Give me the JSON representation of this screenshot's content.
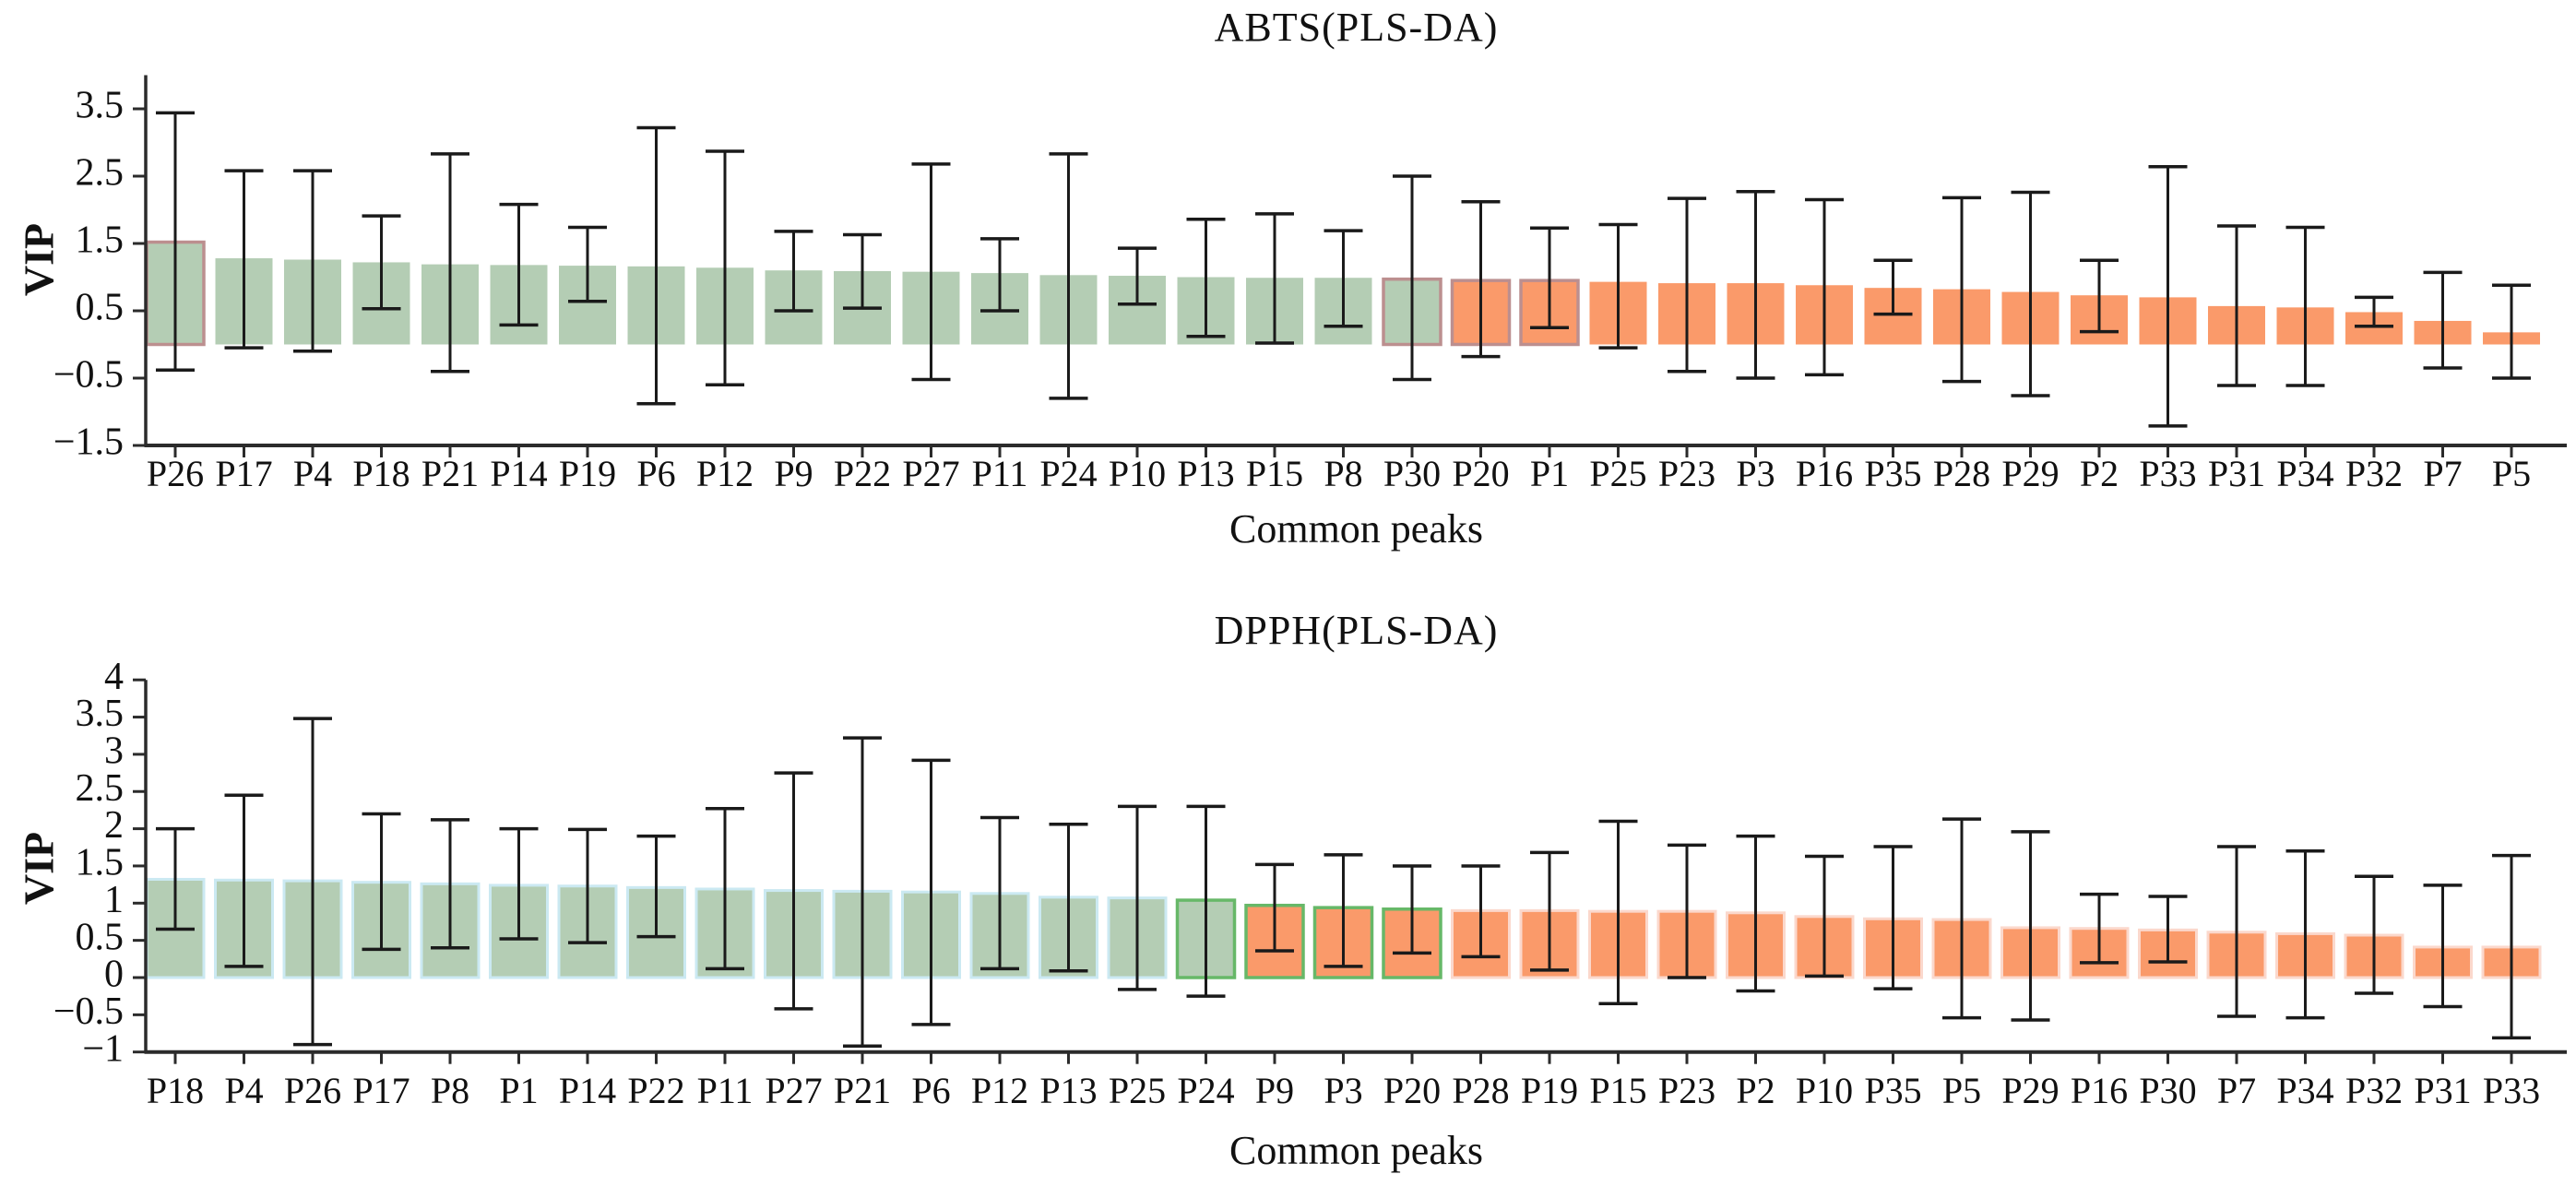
{
  "figure": {
    "background": "#ffffff",
    "axis_color": "#2b2b2b",
    "errorbar_color": "#1a1a1a"
  },
  "chart_data": [
    {
      "type": "bar",
      "title": "ABTS(PLS-DA)",
      "xlabel": "Common peaks",
      "ylabel": "VIP",
      "ylim": [
        -1.5,
        4.0
      ],
      "yticks": [
        3.5,
        2.5,
        1.5,
        0.5,
        -0.5,
        -1.5
      ],
      "grid": "off",
      "legend": "none",
      "categories": [
        "P26",
        "P17",
        "P4",
        "P18",
        "P21",
        "P14",
        "P19",
        "P6",
        "P12",
        "P9",
        "P22",
        "P27",
        "P11",
        "P24",
        "P10",
        "P13",
        "P15",
        "P8",
        "P30",
        "P20",
        "P1",
        "P25",
        "P23",
        "P3",
        "P16",
        "P35",
        "P28",
        "P29",
        "P2",
        "P33",
        "P31",
        "P34",
        "P32",
        "P7",
        "P5"
      ],
      "values": [
        1.52,
        1.28,
        1.26,
        1.22,
        1.19,
        1.18,
        1.17,
        1.16,
        1.14,
        1.1,
        1.09,
        1.08,
        1.06,
        1.03,
        1.02,
        1.0,
        0.99,
        0.99,
        0.97,
        0.95,
        0.95,
        0.93,
        0.91,
        0.91,
        0.88,
        0.84,
        0.82,
        0.78,
        0.73,
        0.7,
        0.57,
        0.55,
        0.48,
        0.35,
        0.18
      ],
      "error_low": [
        -0.38,
        -0.05,
        -0.1,
        0.53,
        -0.4,
        0.29,
        0.64,
        -0.88,
        -0.6,
        0.5,
        0.54,
        -0.52,
        0.5,
        -0.8,
        0.6,
        0.12,
        0.02,
        0.27,
        -0.52,
        -0.18,
        0.25,
        -0.05,
        -0.4,
        -0.5,
        -0.45,
        0.45,
        -0.55,
        -0.76,
        0.19,
        -1.21,
        -0.61,
        -0.61,
        0.27,
        -0.35,
        -0.5
      ],
      "error_high": [
        3.44,
        2.58,
        2.58,
        1.91,
        2.83,
        2.08,
        1.74,
        3.22,
        2.87,
        1.68,
        1.63,
        2.68,
        1.57,
        2.83,
        1.43,
        1.86,
        1.94,
        1.69,
        2.5,
        2.12,
        1.73,
        1.78,
        2.17,
        2.27,
        2.15,
        1.25,
        2.18,
        2.26,
        1.25,
        2.64,
        1.76,
        1.74,
        0.7,
        1.07,
        0.88
      ],
      "green_count": 19,
      "colors": {
        "green": "#b4cdb4",
        "orange": "#fa9a6a",
        "highlight_outline": "#bc8f8f"
      },
      "outlined_indices": [
        0,
        18,
        19,
        20
      ]
    },
    {
      "type": "bar",
      "title": "DPPH(PLS-DA)",
      "xlabel": "Common peaks",
      "ylabel": "VIP",
      "ylim": [
        -1.0,
        4.0
      ],
      "yticks": [
        4,
        3.5,
        3,
        2.5,
        2,
        1.5,
        1,
        0.5,
        0,
        -0.5,
        -1
      ],
      "grid": "off",
      "legend": "none",
      "categories": [
        "P18",
        "P4",
        "P26",
        "P17",
        "P8",
        "P1",
        "P14",
        "P22",
        "P11",
        "P27",
        "P21",
        "P6",
        "P12",
        "P13",
        "P25",
        "P24",
        "P9",
        "P3",
        "P20",
        "P28",
        "P19",
        "P15",
        "P23",
        "P2",
        "P10",
        "P35",
        "P5",
        "P29",
        "P16",
        "P30",
        "P7",
        "P34",
        "P32",
        "P31",
        "P33"
      ],
      "values": [
        1.32,
        1.31,
        1.3,
        1.28,
        1.26,
        1.24,
        1.23,
        1.21,
        1.19,
        1.17,
        1.16,
        1.15,
        1.13,
        1.08,
        1.07,
        1.04,
        0.97,
        0.94,
        0.92,
        0.9,
        0.9,
        0.89,
        0.89,
        0.87,
        0.82,
        0.79,
        0.78,
        0.67,
        0.66,
        0.64,
        0.61,
        0.59,
        0.57,
        0.41,
        0.41
      ],
      "error_low": [
        0.65,
        0.15,
        -0.9,
        0.38,
        0.4,
        0.52,
        0.47,
        0.55,
        0.12,
        -0.42,
        -0.92,
        -0.63,
        0.12,
        0.09,
        -0.16,
        -0.25,
        0.36,
        0.15,
        0.33,
        0.28,
        0.1,
        -0.35,
        0.0,
        -0.18,
        0.02,
        -0.15,
        -0.54,
        -0.57,
        0.2,
        0.21,
        -0.52,
        -0.54,
        -0.21,
        -0.39,
        -0.81
      ],
      "error_high": [
        2.0,
        2.45,
        3.48,
        2.2,
        2.12,
        2.0,
        1.99,
        1.9,
        2.27,
        2.75,
        3.22,
        2.92,
        2.15,
        2.06,
        2.3,
        2.3,
        1.52,
        1.65,
        1.5,
        1.5,
        1.68,
        2.1,
        1.78,
        1.9,
        1.63,
        1.76,
        2.13,
        1.96,
        1.12,
        1.09,
        1.76,
        1.7,
        1.36,
        1.24,
        1.64
      ],
      "green_count": 16,
      "colors": {
        "green": "#b4cdb4",
        "orange": "#fa9a6a",
        "green_stroke": "#cbe9f2",
        "orange_stroke": "#fbd8cc",
        "highlight_outline": "#67b868"
      },
      "outlined_indices": [
        15,
        16,
        17,
        18
      ]
    }
  ]
}
